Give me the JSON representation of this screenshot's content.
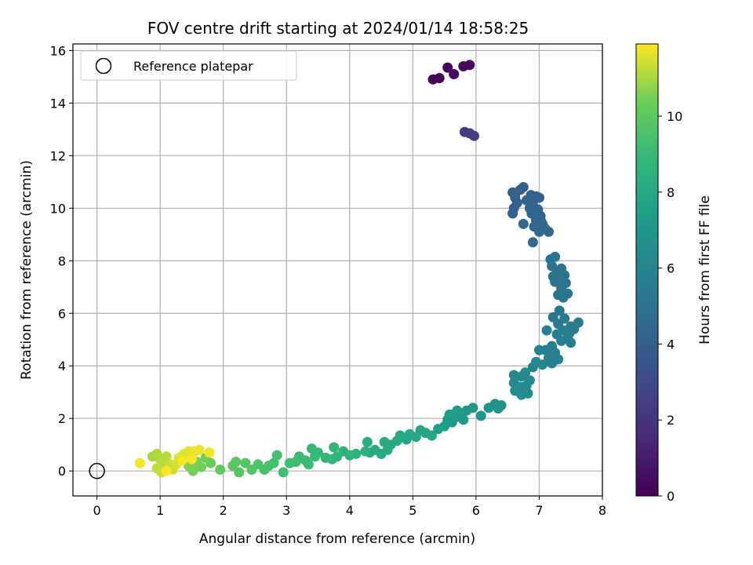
{
  "chart_data": {
    "type": "scatter",
    "title": "FOV centre drift starting at 2024/01/14 18:58:25",
    "xlabel": "Angular distance from reference (arcmin)",
    "ylabel": "Rotation from reference (arcmin)",
    "xlim": [
      -0.38,
      8.0
    ],
    "ylim": [
      -0.95,
      16.25
    ],
    "xticks": [
      0,
      1,
      2,
      3,
      4,
      5,
      6,
      7,
      8
    ],
    "yticks": [
      0,
      2,
      4,
      6,
      8,
      10,
      12,
      14,
      16
    ],
    "grid": true,
    "legend": {
      "placement": "top-left",
      "entries": [
        "Reference platepar"
      ]
    },
    "reference_point": {
      "x": 0,
      "y": 0,
      "label": "Reference platepar"
    },
    "colorbar": {
      "label": "Hours from first FF file",
      "colormap": "viridis",
      "range": [
        0,
        11.9
      ],
      "ticks": [
        0,
        2,
        4,
        6,
        8,
        10
      ]
    },
    "points": [
      [
        5.32,
        14.9,
        0.05
      ],
      [
        5.42,
        14.95,
        0.1
      ],
      [
        5.55,
        15.35,
        0.15
      ],
      [
        5.65,
        15.1,
        0.2
      ],
      [
        5.8,
        15.4,
        0.25
      ],
      [
        5.9,
        15.45,
        0.3
      ],
      [
        5.82,
        12.9,
        2.3
      ],
      [
        5.9,
        12.85,
        2.35
      ],
      [
        5.97,
        12.75,
        2.4
      ],
      [
        6.58,
        10.6,
        4.0
      ],
      [
        6.62,
        10.4,
        4.02
      ],
      [
        6.65,
        10.2,
        4.04
      ],
      [
        6.6,
        10.0,
        4.06
      ],
      [
        6.58,
        9.8,
        4.08
      ],
      [
        6.7,
        10.7,
        4.1
      ],
      [
        6.75,
        10.8,
        4.12
      ],
      [
        6.62,
        10.55,
        4.14
      ],
      [
        6.8,
        10.3,
        4.16
      ],
      [
        6.87,
        10.5,
        4.18
      ],
      [
        6.95,
        10.45,
        4.2
      ],
      [
        7.0,
        10.4,
        4.22
      ],
      [
        6.9,
        10.2,
        4.24
      ],
      [
        6.85,
        10.0,
        4.26
      ],
      [
        6.98,
        9.95,
        4.28
      ],
      [
        6.88,
        9.8,
        4.3
      ],
      [
        7.02,
        9.7,
        4.32
      ],
      [
        6.95,
        9.55,
        4.34
      ],
      [
        7.05,
        9.4,
        4.36
      ],
      [
        6.92,
        9.3,
        4.38
      ],
      [
        7.1,
        9.2,
        4.4
      ],
      [
        7.0,
        9.1,
        4.42
      ],
      [
        7.15,
        9.1,
        4.44
      ],
      [
        6.75,
        9.4,
        4.46
      ],
      [
        6.9,
        8.7,
        4.48
      ],
      [
        7.03,
        9.5,
        4.5
      ],
      [
        7.08,
        9.25,
        4.52
      ],
      [
        7.18,
        8.05,
        5.0
      ],
      [
        7.25,
        8.15,
        5.02
      ],
      [
        7.2,
        7.8,
        5.04
      ],
      [
        7.28,
        7.6,
        5.06
      ],
      [
        7.35,
        7.7,
        5.08
      ],
      [
        7.22,
        7.4,
        5.1
      ],
      [
        7.3,
        7.3,
        5.12
      ],
      [
        7.4,
        7.45,
        5.14
      ],
      [
        7.25,
        7.2,
        5.16
      ],
      [
        7.42,
        7.15,
        5.18
      ],
      [
        7.35,
        6.95,
        5.2
      ],
      [
        7.3,
        6.7,
        5.22
      ],
      [
        7.38,
        6.6,
        5.24
      ],
      [
        7.45,
        6.75,
        5.26
      ],
      [
        7.32,
        6.1,
        5.3
      ],
      [
        7.22,
        5.85,
        5.4
      ],
      [
        7.3,
        5.6,
        5.45
      ],
      [
        7.4,
        5.8,
        5.5
      ],
      [
        7.5,
        5.5,
        5.55
      ],
      [
        7.62,
        5.65,
        5.6
      ],
      [
        7.55,
        5.4,
        5.62
      ],
      [
        7.48,
        5.25,
        5.64
      ],
      [
        7.38,
        5.35,
        5.66
      ],
      [
        7.12,
        5.35,
        5.68
      ],
      [
        7.28,
        5.2,
        5.7
      ],
      [
        7.45,
        5.05,
        5.72
      ],
      [
        7.35,
        4.95,
        5.74
      ],
      [
        7.5,
        4.88,
        5.76
      ],
      [
        7.2,
        4.75,
        5.78
      ],
      [
        7.25,
        4.5,
        5.8
      ],
      [
        7.1,
        4.6,
        5.82
      ],
      [
        7.0,
        4.6,
        5.84
      ],
      [
        7.15,
        4.3,
        5.86
      ],
      [
        7.3,
        4.25,
        5.88
      ],
      [
        7.2,
        4.1,
        5.9
      ],
      [
        6.95,
        4.15,
        6.2
      ],
      [
        6.9,
        3.95,
        6.22
      ],
      [
        7.05,
        4.05,
        6.24
      ],
      [
        6.78,
        3.75,
        6.26
      ],
      [
        6.72,
        3.6,
        6.28
      ],
      [
        6.6,
        3.65,
        6.3
      ],
      [
        6.85,
        3.45,
        6.32
      ],
      [
        6.8,
        3.25,
        6.34
      ],
      [
        6.7,
        3.2,
        6.36
      ],
      [
        6.6,
        3.35,
        6.38
      ],
      [
        6.62,
        3.05,
        6.4
      ],
      [
        6.75,
        3.0,
        6.42
      ],
      [
        6.82,
        2.95,
        6.44
      ],
      [
        6.72,
        2.9,
        6.46
      ],
      [
        6.4,
        2.5,
        6.8
      ],
      [
        6.3,
        2.55,
        6.85
      ],
      [
        6.2,
        2.4,
        6.9
      ],
      [
        6.35,
        2.38,
        6.95
      ],
      [
        6.08,
        2.1,
        7.0
      ],
      [
        5.95,
        2.4,
        7.05
      ],
      [
        5.85,
        2.3,
        7.1
      ],
      [
        5.75,
        2.2,
        7.15
      ],
      [
        5.68,
        2.05,
        7.2
      ],
      [
        5.8,
        1.95,
        7.25
      ],
      [
        5.62,
        1.85,
        7.3
      ],
      [
        5.55,
        1.95,
        7.35
      ],
      [
        5.7,
        2.3,
        7.4
      ],
      [
        5.5,
        1.7,
        7.45
      ],
      [
        5.4,
        1.6,
        7.5
      ],
      [
        5.58,
        2.15,
        7.55
      ],
      [
        5.3,
        1.35,
        7.9
      ],
      [
        5.2,
        1.45,
        7.92
      ],
      [
        5.12,
        1.55,
        7.94
      ],
      [
        5.05,
        1.3,
        7.96
      ],
      [
        4.95,
        1.4,
        7.98
      ],
      [
        4.9,
        1.2,
        8.0
      ],
      [
        4.8,
        1.35,
        8.02
      ],
      [
        4.75,
        1.15,
        8.04
      ],
      [
        4.65,
        1.0,
        8.06
      ],
      [
        4.55,
        1.1,
        8.08
      ],
      [
        4.6,
        0.8,
        8.1
      ],
      [
        4.5,
        0.65,
        8.12
      ],
      [
        4.4,
        0.8,
        8.14
      ],
      [
        4.32,
        0.7,
        8.16
      ],
      [
        4.28,
        1.1,
        8.18
      ],
      [
        4.25,
        0.75,
        8.5
      ],
      [
        4.1,
        0.65,
        8.55
      ],
      [
        4.0,
        0.6,
        8.6
      ],
      [
        3.9,
        0.75,
        8.65
      ],
      [
        3.8,
        0.55,
        8.7
      ],
      [
        3.72,
        0.45,
        8.75
      ],
      [
        3.75,
        0.9,
        8.8
      ],
      [
        3.62,
        0.5,
        8.85
      ],
      [
        3.5,
        0.7,
        8.9
      ],
      [
        3.4,
        0.85,
        8.95
      ],
      [
        3.45,
        0.55,
        9.0
      ],
      [
        3.3,
        0.4,
        9.05
      ],
      [
        3.35,
        0.25,
        9.1
      ],
      [
        3.2,
        0.55,
        9.15
      ],
      [
        3.15,
        0.35,
        9.2
      ],
      [
        3.05,
        0.3,
        9.25
      ],
      [
        2.95,
        -0.05,
        9.3
      ],
      [
        2.85,
        0.6,
        9.35
      ],
      [
        2.8,
        0.3,
        9.4
      ],
      [
        2.72,
        0.2,
        9.45
      ],
      [
        2.65,
        0.05,
        9.5
      ],
      [
        2.55,
        0.25,
        9.7
      ],
      [
        2.45,
        0.05,
        9.75
      ],
      [
        2.35,
        0.3,
        9.8
      ],
      [
        2.25,
        -0.05,
        9.85
      ],
      [
        2.2,
        0.35,
        9.9
      ],
      [
        2.15,
        0.2,
        9.95
      ],
      [
        1.95,
        0.05,
        10.0
      ],
      [
        1.8,
        0.3,
        10.3
      ],
      [
        1.72,
        0.5,
        10.35
      ],
      [
        1.65,
        0.15,
        10.4
      ],
      [
        1.58,
        0.35,
        10.45
      ],
      [
        1.52,
        0.0,
        10.5
      ],
      [
        1.45,
        0.2,
        10.55
      ],
      [
        0.88,
        0.55,
        11.0
      ],
      [
        0.95,
        0.65,
        11.05
      ],
      [
        1.0,
        0.45,
        11.1
      ],
      [
        1.05,
        0.3,
        11.15
      ],
      [
        1.1,
        0.55,
        11.2
      ],
      [
        0.95,
        0.1,
        11.25
      ],
      [
        1.02,
        -0.05,
        11.3
      ],
      [
        1.15,
        0.25,
        11.35
      ],
      [
        1.2,
        0.05,
        11.4
      ],
      [
        1.25,
        0.25,
        11.45
      ],
      [
        1.3,
        0.5,
        11.5
      ],
      [
        1.38,
        0.65,
        11.55
      ],
      [
        1.45,
        0.75,
        11.6
      ],
      [
        1.55,
        0.75,
        11.65
      ],
      [
        1.62,
        0.8,
        11.7
      ],
      [
        1.78,
        0.7,
        11.75
      ],
      [
        0.68,
        0.3,
        11.8
      ],
      [
        1.35,
        0.4,
        11.82
      ],
      [
        1.5,
        0.45,
        11.84
      ],
      [
        1.1,
        0.0,
        11.86
      ]
    ]
  },
  "colors": {
    "grid": "#b0b0b0",
    "axes": "#000000",
    "legend_border": "#cccccc"
  }
}
